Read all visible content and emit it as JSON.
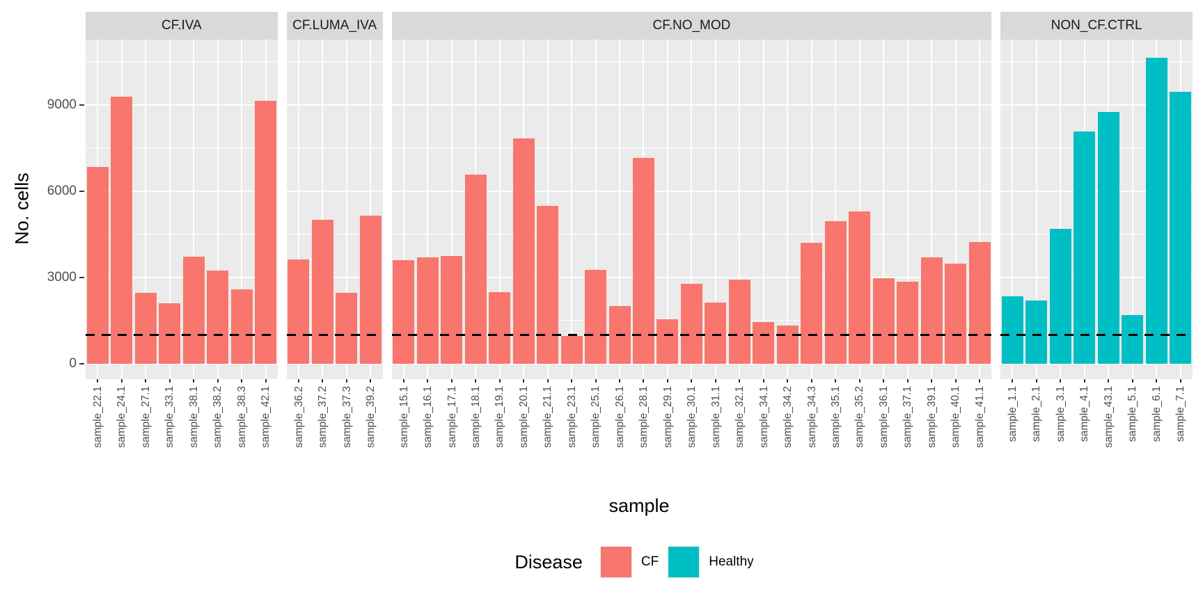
{
  "figure": {
    "y_axis": {
      "label": "No. cells",
      "ticks": [
        0,
        3000,
        6000,
        9000
      ]
    },
    "x_axis": {
      "label": "sample"
    },
    "legend": {
      "title": "Disease",
      "entries": [
        {
          "label": "CF",
          "color": "#F8766D"
        },
        {
          "label": "Healthy",
          "color": "#00BFC4"
        }
      ]
    },
    "reference_line": {
      "value": 1000,
      "style": "dashed",
      "color": "#000000"
    },
    "colors": {
      "cf_bar": "#F8766D",
      "healthy_bar": "#00BFC4",
      "panel_background": "#EBEBEB",
      "strip_background": "#D9D9D9",
      "gridline": "#FFFFFF",
      "axis_text": "#4D4D4D"
    }
  },
  "chart_data": {
    "type": "bar",
    "title": "",
    "xlabel": "sample",
    "ylabel": "No. cells",
    "ylim": [
      0,
      11250
    ],
    "yticks": [
      0,
      3000,
      6000,
      9000
    ],
    "grid": true,
    "legend_position": "bottom",
    "reference_hline": 1000,
    "facets": [
      {
        "label": "CF.IVA",
        "disease": "CF",
        "color": "#F8766D",
        "categories": [
          "sample_22.1",
          "sample_24.1",
          "sample_27.1",
          "sample_33.1",
          "sample_38.1",
          "sample_38.2",
          "sample_38.3",
          "sample_42.1"
        ],
        "values": [
          6840,
          9280,
          2470,
          2110,
          3720,
          3250,
          2600,
          9150
        ]
      },
      {
        "label": "CF.LUMA_IVA",
        "disease": "CF",
        "color": "#F8766D",
        "categories": [
          "sample_36.2",
          "sample_37.2",
          "sample_37.3",
          "sample_39.2"
        ],
        "values": [
          3640,
          5000,
          2460,
          5160
        ]
      },
      {
        "label": "CF.NO_MOD",
        "disease": "CF",
        "color": "#F8766D",
        "categories": [
          "sample_15.1",
          "sample_16.1",
          "sample_17.1",
          "sample_18.1",
          "sample_19.1",
          "sample_20.1",
          "sample_21.1",
          "sample_23.1",
          "sample_25.1",
          "sample_26.1",
          "sample_28.1",
          "sample_29.1",
          "sample_30.1",
          "sample_31.1",
          "sample_32.1",
          "sample_34.1",
          "sample_34.2",
          "sample_34.3",
          "sample_35.1",
          "sample_35.2",
          "sample_36.1",
          "sample_37.1",
          "sample_39.1",
          "sample_40.1",
          "sample_41.1"
        ],
        "values": [
          3600,
          3690,
          3740,
          6570,
          2490,
          7830,
          5480,
          970,
          3260,
          2010,
          7170,
          1550,
          2780,
          2130,
          2920,
          1450,
          1330,
          4200,
          4950,
          5290,
          2970,
          2850,
          3690,
          3480,
          4230
        ]
      },
      {
        "label": "NON_CF.CTRL",
        "disease": "Healthy",
        "color": "#00BFC4",
        "categories": [
          "sample_1.1",
          "sample_2.1",
          "sample_3.1",
          "sample_4.1",
          "sample_43.1",
          "sample_5.1",
          "sample_6.1",
          "sample_7.1"
        ],
        "values": [
          2340,
          2200,
          4690,
          8090,
          8750,
          1700,
          10650,
          9450
        ]
      }
    ]
  }
}
